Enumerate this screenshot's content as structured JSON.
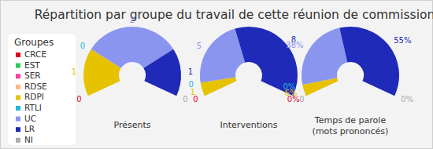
{
  "title": "Répartition par groupe du travail de cette réunion de commission",
  "legend_title": "Groupes",
  "groups": [
    {
      "name": "CRCE",
      "color": "#e3001b"
    },
    {
      "name": "EST",
      "color": "#2ecc5a"
    },
    {
      "name": "SER",
      "color": "#ff3fa8"
    },
    {
      "name": "RDSE",
      "color": "#ffb487"
    },
    {
      "name": "RDPI",
      "color": "#e6c200"
    },
    {
      "name": "RTLI",
      "color": "#22b8dc"
    },
    {
      "name": "UC",
      "color": "#8a95f0"
    },
    {
      "name": "LR",
      "color": "#1f2ab8"
    },
    {
      "name": "NI",
      "color": "#aaaaaa"
    }
  ],
  "chart_data": [
    {
      "type": "donut",
      "title": "Présents",
      "values": [
        0,
        null,
        null,
        null,
        1,
        0,
        2,
        1,
        0
      ],
      "data_labels": true
    },
    {
      "type": "donut",
      "title": "Interventions",
      "values": [
        0,
        null,
        null,
        null,
        1,
        0,
        5,
        8,
        0
      ],
      "data_labels": true
    },
    {
      "type": "donut",
      "title": "Temps de parole",
      "subtitle": "(mots prononcés)",
      "values": [
        0,
        null,
        null,
        null,
        6,
        0,
        38,
        55,
        0
      ],
      "value_labels": [
        "0%",
        null,
        null,
        null,
        "6%",
        "0%",
        "38%",
        "55%",
        "0%"
      ],
      "data_labels": true
    }
  ]
}
